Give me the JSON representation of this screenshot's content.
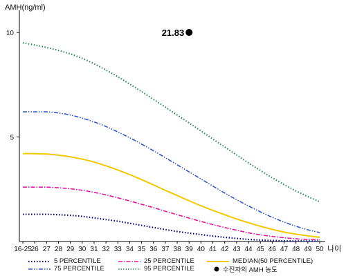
{
  "chart_data": {
    "type": "line",
    "ylabel": "AMH(ng/ml)",
    "xlabel": "나이",
    "ylim": [
      0,
      11
    ],
    "yticks": [
      5,
      10
    ],
    "categories": [
      "16-25",
      "26",
      "27",
      "28",
      "29",
      "30",
      "31",
      "32",
      "33",
      "34",
      "35",
      "36",
      "37",
      "38",
      "39",
      "40",
      "41",
      "42",
      "43",
      "44",
      "45",
      "46",
      "47",
      "48",
      "49",
      "50"
    ],
    "series": [
      {
        "name": "5 PERCENTILE",
        "color": "#000080",
        "style": "dotted",
        "values": [
          1.3,
          1.3,
          1.3,
          1.28,
          1.25,
          1.2,
          1.13,
          1.05,
          0.97,
          0.87,
          0.77,
          0.67,
          0.57,
          0.48,
          0.4,
          0.33,
          0.26,
          0.2,
          0.15,
          0.1,
          0.07,
          0.05,
          0.03,
          0.02,
          0.02,
          0.02
        ]
      },
      {
        "name": "25 PERCENTILE",
        "color": "#e0179a",
        "style": "dashdot",
        "values": [
          2.6,
          2.6,
          2.6,
          2.57,
          2.52,
          2.45,
          2.35,
          2.23,
          2.09,
          1.94,
          1.78,
          1.62,
          1.45,
          1.28,
          1.12,
          0.96,
          0.81,
          0.67,
          0.54,
          0.42,
          0.32,
          0.24,
          0.18,
          0.13,
          0.1,
          0.08
        ]
      },
      {
        "name": "MEDIAN(50 PERCENTILE)",
        "color": "#f2c800",
        "style": "solid",
        "values": [
          4.2,
          4.2,
          4.18,
          4.13,
          4.05,
          3.94,
          3.8,
          3.62,
          3.42,
          3.2,
          2.96,
          2.71,
          2.45,
          2.2,
          1.95,
          1.71,
          1.49,
          1.28,
          1.08,
          0.9,
          0.73,
          0.58,
          0.45,
          0.35,
          0.27,
          0.2
        ]
      },
      {
        "name": "75 PERCENTILE",
        "color": "#3355cc",
        "style": "dashdotdot",
        "values": [
          6.2,
          6.2,
          6.2,
          6.15,
          6.05,
          5.9,
          5.72,
          5.5,
          5.24,
          4.96,
          4.66,
          4.34,
          4.01,
          3.67,
          3.33,
          2.99,
          2.65,
          2.32,
          2.0,
          1.7,
          1.42,
          1.16,
          0.93,
          0.73,
          0.56,
          0.43
        ]
      },
      {
        "name": "95 PERCENTILE",
        "color": "#2e8b57",
        "style": "dotted",
        "values": [
          9.5,
          9.4,
          9.28,
          9.14,
          8.97,
          8.76,
          8.5,
          8.2,
          7.88,
          7.53,
          7.17,
          6.8,
          6.43,
          6.05,
          5.67,
          5.29,
          4.9,
          4.52,
          4.14,
          3.76,
          3.4,
          3.05,
          2.72,
          2.42,
          2.15,
          1.9
        ]
      }
    ],
    "marker": {
      "name": "수진자의 AMH 농도",
      "x": "39",
      "y": 21.83,
      "label": "21.83",
      "color": "#000000"
    },
    "grid": false,
    "legend": "bottom"
  },
  "legend": {
    "items": [
      {
        "label": "5 PERCENTILE"
      },
      {
        "label": "25 PERCENTILE"
      },
      {
        "label": "MEDIAN(50 PERCENTILE)"
      },
      {
        "label": "75 PERCENTILE"
      },
      {
        "label": "95 PERCENTILE"
      },
      {
        "label": "수진자의 AMH 농도"
      }
    ]
  }
}
